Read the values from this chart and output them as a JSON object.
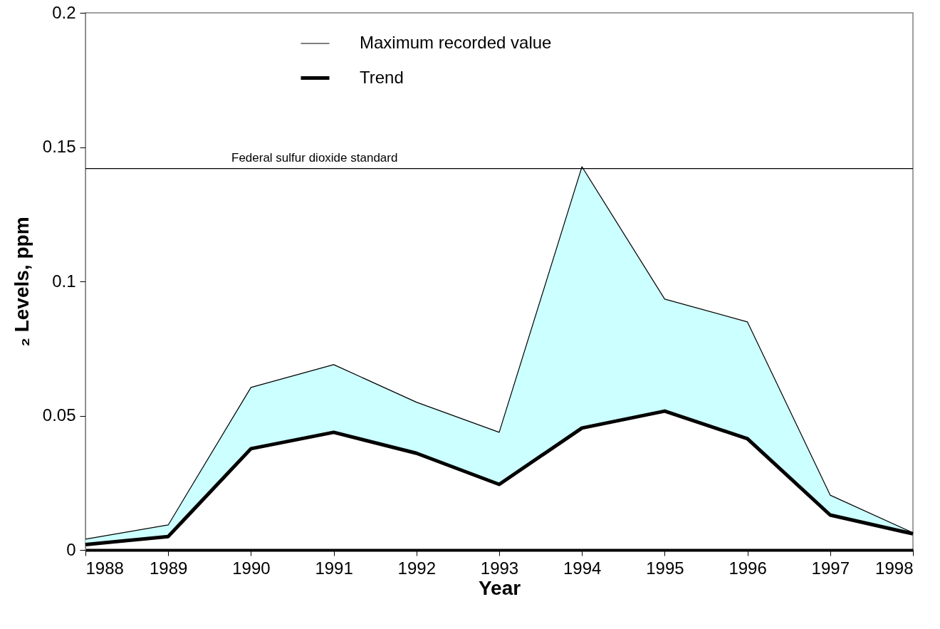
{
  "chart_data": {
    "type": "line",
    "xlabel": "Year",
    "ylabel": "₂ Levels, ppm",
    "x": [
      1988,
      1989,
      1990,
      1991,
      1992,
      1993,
      1994,
      1995,
      1996,
      1997,
      1998
    ],
    "series": [
      {
        "name": "Maximum recorded value",
        "color": "#000000",
        "values": [
          0.004,
          0.0093,
          0.0605,
          0.069,
          0.055,
          0.0438,
          0.1427,
          0.0934,
          0.0849,
          0.0204,
          0.0064
        ],
        "lower": [
          0.002,
          0.005,
          0.0377,
          0.0438,
          0.036,
          0.0244,
          0.0454,
          0.0517,
          0.0414,
          0.013,
          0.006
        ],
        "upper": [
          0.004,
          0.0093,
          0.0605,
          0.069,
          0.055,
          0.0438,
          0.1427,
          0.0934,
          0.0849,
          0.0204,
          0.0064
        ]
      },
      {
        "name": "Trend",
        "color": "#000000",
        "values": [
          0.002,
          0.005,
          0.0377,
          0.0438,
          0.036,
          0.0244,
          0.0454,
          0.0517,
          0.0414,
          0.013,
          0.006
        ]
      }
    ],
    "xlim": [
      1988,
      1998
    ],
    "xticks": [
      1988,
      1989,
      1990,
      1991,
      1992,
      1993,
      1994,
      1995,
      1996,
      1997,
      1998
    ],
    "ylim": [
      0,
      0.2
    ],
    "yticks": [
      0,
      0.05,
      0.1,
      0.15,
      0.2
    ],
    "ref_lines": [
      {
        "axis": "y",
        "value": 0.142,
        "label": "Federal sulfur dioxide standard",
        "color": "#000000"
      }
    ],
    "grid": false,
    "legend": "top",
    "marker": "none",
    "line_style": "solid"
  }
}
